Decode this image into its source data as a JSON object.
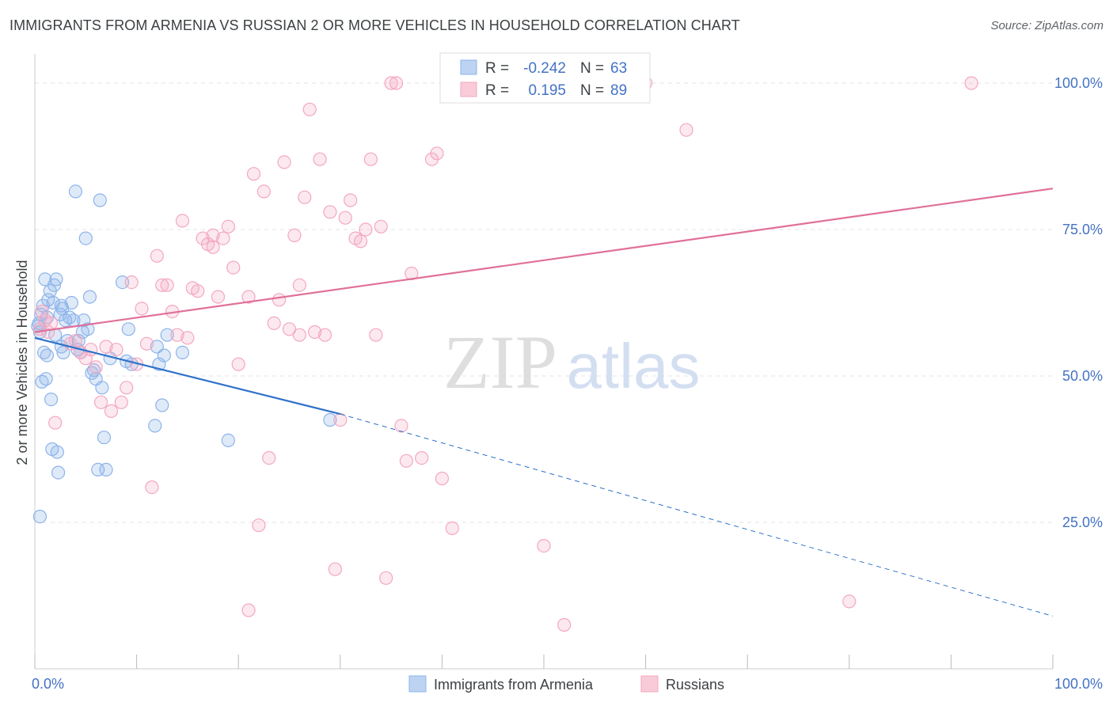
{
  "header": {
    "title": "IMMIGRANTS FROM ARMENIA VS RUSSIAN 2 OR MORE VEHICLES IN HOUSEHOLD CORRELATION CHART",
    "source": "Source: ZipAtlas.com"
  },
  "watermark": {
    "zip": "ZIP",
    "atlas": "atlas"
  },
  "chart_data": {
    "type": "scatter",
    "ylabel": "2 or more Vehicles in Household",
    "xlim": [
      0,
      100
    ],
    "ylim": [
      0,
      105
    ],
    "x_tick_labels": [
      {
        "value": 0,
        "label": "0.0%"
      },
      {
        "value": 100,
        "label": "100.0%"
      }
    ],
    "y_tick_labels": [
      {
        "value": 25,
        "label": "25.0%"
      },
      {
        "value": 50,
        "label": "50.0%"
      },
      {
        "value": 75,
        "label": "75.0%"
      },
      {
        "value": 100,
        "label": "100.0%"
      }
    ],
    "grid": "horizontal dashed",
    "legend_position": "top-center",
    "bottom_legend": [
      {
        "name": "Immigrants from Armenia",
        "color": "#8db4ea"
      },
      {
        "name": "Russians",
        "color": "#f4a7c0"
      }
    ],
    "stats": [
      {
        "r_label": "R =",
        "r_value": "-0.242",
        "n_label": "N =",
        "n_value": "63",
        "color": "#8db4ea"
      },
      {
        "r_label": "R =",
        "r_value": "0.195",
        "n_label": "N =",
        "n_value": "89",
        "color": "#f4a7c0"
      }
    ],
    "series": [
      {
        "name": "Immigrants from Armenia",
        "color": "#8db4ea",
        "line_color": "#2f72c9",
        "trend": {
          "x0": 0,
          "y0": 56.5,
          "x1": 30,
          "y1": 43.5,
          "dash_to_x": 100,
          "dash_to_y": 9.0
        },
        "points": [
          [
            0.3,
            58.5
          ],
          [
            0.4,
            59.0
          ],
          [
            0.5,
            57.5
          ],
          [
            0.6,
            60.5
          ],
          [
            0.7,
            49.0
          ],
          [
            0.8,
            62.0
          ],
          [
            0.9,
            54.0
          ],
          [
            1.0,
            66.5
          ],
          [
            1.1,
            49.5
          ],
          [
            1.2,
            53.5
          ],
          [
            1.3,
            63.0
          ],
          [
            1.5,
            64.5
          ],
          [
            1.6,
            46.0
          ],
          [
            1.7,
            37.5
          ],
          [
            1.8,
            62.5
          ],
          [
            1.9,
            65.5
          ],
          [
            2.0,
            57.0
          ],
          [
            2.1,
            66.5
          ],
          [
            2.2,
            37.0
          ],
          [
            2.3,
            33.5
          ],
          [
            2.5,
            60.5
          ],
          [
            2.6,
            62.0
          ],
          [
            2.7,
            61.5
          ],
          [
            2.8,
            54.0
          ],
          [
            3.0,
            59.5
          ],
          [
            3.2,
            56.0
          ],
          [
            3.4,
            60.0
          ],
          [
            3.6,
            62.5
          ],
          [
            3.8,
            59.5
          ],
          [
            4.0,
            81.5
          ],
          [
            4.2,
            54.5
          ],
          [
            4.3,
            56.0
          ],
          [
            4.5,
            54.0
          ],
          [
            4.7,
            57.5
          ],
          [
            4.8,
            59.5
          ],
          [
            5.0,
            73.5
          ],
          [
            5.2,
            58.0
          ],
          [
            5.4,
            63.5
          ],
          [
            5.6,
            50.5
          ],
          [
            5.8,
            51.0
          ],
          [
            6.0,
            49.5
          ],
          [
            6.2,
            34.0
          ],
          [
            6.4,
            80.0
          ],
          [
            6.6,
            48.0
          ],
          [
            6.8,
            39.5
          ],
          [
            7.0,
            34.0
          ],
          [
            7.4,
            53.0
          ],
          [
            8.6,
            66.0
          ],
          [
            9.0,
            52.5
          ],
          [
            9.2,
            58.0
          ],
          [
            9.5,
            52.0
          ],
          [
            11.8,
            41.5
          ],
          [
            12.0,
            55.0
          ],
          [
            12.2,
            52.0
          ],
          [
            12.5,
            45.0
          ],
          [
            12.7,
            53.5
          ],
          [
            13.0,
            57.0
          ],
          [
            14.5,
            54.0
          ],
          [
            19.0,
            39.0
          ],
          [
            29.0,
            42.5
          ],
          [
            0.5,
            26.0
          ],
          [
            1.2,
            60.0
          ],
          [
            2.6,
            55.0
          ]
        ]
      },
      {
        "name": "Russians",
        "color": "#f4a7c0",
        "line_color": "#e0709a",
        "trend": {
          "x0": 0,
          "y0": 57.5,
          "x1": 100,
          "y1": 82.0
        },
        "points": [
          [
            0.5,
            58.0
          ],
          [
            0.7,
            61.0
          ],
          [
            1.0,
            59.5
          ],
          [
            1.3,
            57.5
          ],
          [
            1.6,
            59.0
          ],
          [
            2.0,
            42.0
          ],
          [
            3.5,
            55.5
          ],
          [
            4.0,
            56.0
          ],
          [
            4.5,
            54.0
          ],
          [
            5.0,
            53.0
          ],
          [
            5.5,
            54.5
          ],
          [
            6.0,
            51.5
          ],
          [
            6.5,
            45.5
          ],
          [
            7.0,
            55.0
          ],
          [
            7.5,
            44.0
          ],
          [
            8.0,
            54.5
          ],
          [
            8.5,
            45.5
          ],
          [
            9.0,
            48.0
          ],
          [
            9.5,
            66.0
          ],
          [
            10.0,
            52.0
          ],
          [
            10.5,
            61.5
          ],
          [
            11.0,
            55.5
          ],
          [
            11.5,
            31.0
          ],
          [
            12.0,
            70.5
          ],
          [
            12.5,
            65.5
          ],
          [
            13.0,
            65.5
          ],
          [
            13.5,
            61.0
          ],
          [
            14.0,
            57.0
          ],
          [
            14.5,
            76.5
          ],
          [
            15.0,
            56.5
          ],
          [
            15.5,
            65.0
          ],
          [
            16.0,
            64.5
          ],
          [
            16.5,
            73.5
          ],
          [
            17.0,
            72.5
          ],
          [
            17.5,
            74.0
          ],
          [
            18.0,
            63.5
          ],
          [
            18.5,
            73.5
          ],
          [
            19.0,
            75.5
          ],
          [
            19.5,
            68.5
          ],
          [
            20.0,
            52.0
          ],
          [
            21.0,
            63.5
          ],
          [
            21.5,
            84.5
          ],
          [
            22.0,
            24.5
          ],
          [
            22.5,
            81.5
          ],
          [
            23.0,
            36.0
          ],
          [
            23.5,
            59.0
          ],
          [
            24.0,
            63.0
          ],
          [
            24.5,
            86.5
          ],
          [
            25.0,
            58.0
          ],
          [
            25.5,
            74.0
          ],
          [
            26.0,
            65.5
          ],
          [
            26.5,
            80.5
          ],
          [
            27.0,
            95.5
          ],
          [
            27.5,
            57.5
          ],
          [
            28.0,
            87.0
          ],
          [
            28.5,
            57.0
          ],
          [
            29.0,
            78.0
          ],
          [
            29.5,
            17.0
          ],
          [
            30.0,
            42.5
          ],
          [
            30.5,
            77.0
          ],
          [
            31.0,
            80.0
          ],
          [
            31.5,
            73.5
          ],
          [
            32.0,
            73.0
          ],
          [
            32.5,
            75.0
          ],
          [
            33.0,
            87.0
          ],
          [
            33.5,
            57.0
          ],
          [
            34.0,
            75.5
          ],
          [
            34.5,
            15.5
          ],
          [
            35.0,
            100.0
          ],
          [
            35.5,
            100.0
          ],
          [
            36.0,
            41.5
          ],
          [
            36.5,
            35.5
          ],
          [
            37.0,
            67.5
          ],
          [
            38.0,
            36.0
          ],
          [
            39.0,
            87.0
          ],
          [
            39.5,
            88.0
          ],
          [
            40.0,
            32.5
          ],
          [
            41.0,
            24.0
          ],
          [
            44.0,
            100.0
          ],
          [
            46.0,
            100.0
          ],
          [
            50.0,
            21.0
          ],
          [
            52.0,
            7.5
          ],
          [
            60.0,
            100.0
          ],
          [
            64.0,
            92.0
          ],
          [
            80.0,
            11.5
          ],
          [
            92.0,
            100.0
          ],
          [
            17.5,
            72.0
          ],
          [
            26.0,
            57.0
          ],
          [
            21.0,
            10.0
          ]
        ]
      }
    ]
  }
}
